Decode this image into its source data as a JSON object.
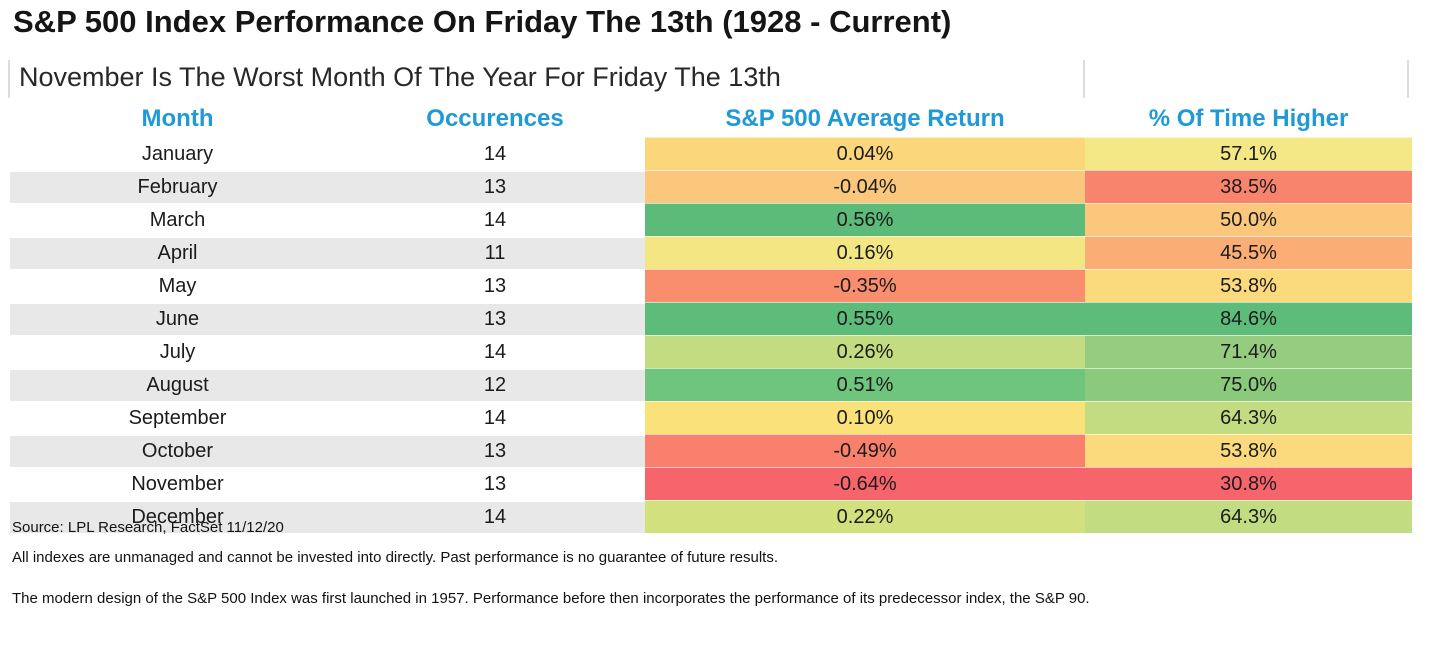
{
  "page": {
    "title": "S&P 500 Index Performance On Friday The 13th (1928 - Current)",
    "subtitle": "November Is The Worst Month Of The Year For Friday The 13th",
    "source": "Source: LPL Research, FactSet 11/12/20",
    "disclaimer1": "All indexes are unmanaged and cannot be invested into directly. Past performance is no guarantee of future results.",
    "disclaimer2": "The modern design of the S&P 500 Index was first launched in 1957. Performance before then incorporates the performance of its predecessor index, the S&P 90."
  },
  "colors": {
    "header_blue": "#1F9AD7",
    "row_stripe": "#E8E8E8",
    "row_white": "#FFFFFF"
  },
  "chart_data": {
    "type": "table",
    "title": "S&P 500 Index Performance On Friday The 13th (1928 - Current)",
    "subtitle": "November Is The Worst Month Of The Year For Friday The 13th",
    "columns": [
      "Month",
      "Occurences",
      "S&P 500 Average Return",
      "% Of Time Higher"
    ],
    "rows": [
      {
        "month": "January",
        "occurences": "14",
        "avg_return": "0.04%",
        "pct_higher": "57.1%",
        "return_color": "#FCD67A",
        "pct_color": "#F4E785"
      },
      {
        "month": "February",
        "occurences": "13",
        "avg_return": "-0.04%",
        "pct_higher": "38.5%",
        "return_color": "#FAC77D",
        "pct_color": "#F8846D"
      },
      {
        "month": "March",
        "occurences": "14",
        "avg_return": "0.56%",
        "pct_higher": "50.0%",
        "return_color": "#5CBB78",
        "pct_color": "#FBC77C"
      },
      {
        "month": "April",
        "occurences": "11",
        "avg_return": "0.16%",
        "pct_higher": "45.5%",
        "return_color": "#F3E683",
        "pct_color": "#FAAE76"
      },
      {
        "month": "May",
        "occurences": "13",
        "avg_return": "-0.35%",
        "pct_higher": "53.8%",
        "return_color": "#F88E6E",
        "pct_color": "#FBDA7D"
      },
      {
        "month": "June",
        "occurences": "13",
        "avg_return": "0.55%",
        "pct_higher": "84.6%",
        "return_color": "#5DBC79",
        "pct_color": "#5DBC79"
      },
      {
        "month": "July",
        "occurences": "14",
        "avg_return": "0.26%",
        "pct_higher": "71.4%",
        "return_color": "#C3DC81",
        "pct_color": "#95CC80"
      },
      {
        "month": "August",
        "occurences": "12",
        "avg_return": "0.51%",
        "pct_higher": "75.0%",
        "return_color": "#6FC57E",
        "pct_color": "#8BCA7D"
      },
      {
        "month": "September",
        "occurences": "14",
        "avg_return": "0.10%",
        "pct_higher": "64.3%",
        "return_color": "#FAE179",
        "pct_color": "#C3DC82"
      },
      {
        "month": "October",
        "occurences": "13",
        "avg_return": "-0.49%",
        "pct_higher": "53.8%",
        "return_color": "#F8806C",
        "pct_color": "#FBDA7D"
      },
      {
        "month": "November",
        "occurences": "13",
        "avg_return": "-0.64%",
        "pct_higher": "30.8%",
        "return_color": "#F7656C",
        "pct_color": "#F7656C"
      },
      {
        "month": "December",
        "occurences": "14",
        "avg_return": "0.22%",
        "pct_higher": "64.3%",
        "return_color": "#D3E07E",
        "pct_color": "#C2DC81"
      }
    ]
  }
}
